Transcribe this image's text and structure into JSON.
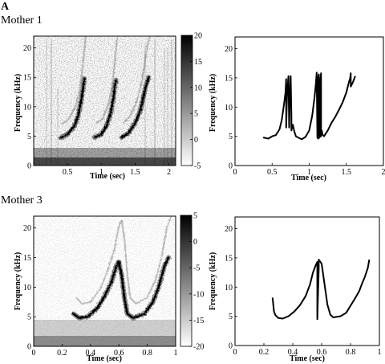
{
  "figure": {
    "panel_letter": "A",
    "rows": [
      {
        "label": "Mother 1"
      },
      {
        "label": "Mother 3"
      }
    ]
  },
  "chart_data": [
    {
      "id": "m1_spectrogram",
      "type": "heatmap",
      "title": "",
      "xlabel": "Time (sec)",
      "ylabel": "Frequency (kHz)",
      "xlim": [
        0,
        2.1
      ],
      "ylim": [
        0,
        22
      ],
      "xticks": [
        0.5,
        1,
        1.5,
        2
      ],
      "yticks": [
        0,
        5,
        10,
        15,
        20
      ],
      "colorbar": {
        "range": [
          -5,
          20
        ],
        "ticks": [
          20,
          15,
          10,
          5,
          0,
          -5
        ]
      },
      "traces": [
        {
          "points": [
            [
              0.4,
              4.7
            ],
            [
              0.5,
              5.3
            ],
            [
              0.6,
              6.7
            ],
            [
              0.66,
              8.5
            ],
            [
              0.7,
              11
            ],
            [
              0.73,
              13
            ],
            [
              0.75,
              14.8
            ]
          ]
        },
        {
          "points": [
            [
              0.9,
              4.8
            ],
            [
              1.0,
              5.3
            ],
            [
              1.08,
              6.8
            ],
            [
              1.14,
              9
            ],
            [
              1.18,
              11.5
            ],
            [
              1.2,
              13.5
            ],
            [
              1.22,
              14.5
            ]
          ]
        },
        {
          "points": [
            [
              1.3,
              4.8
            ],
            [
              1.4,
              5.5
            ],
            [
              1.5,
              7.2
            ],
            [
              1.58,
              9.5
            ],
            [
              1.62,
              11.5
            ],
            [
              1.66,
              13.5
            ],
            [
              1.7,
              15
            ]
          ]
        }
      ]
    },
    {
      "id": "m1_contour",
      "type": "line",
      "title": "",
      "xlabel": "Time (sec)",
      "ylabel": "Frequency (kHz)",
      "xlim": [
        0,
        2
      ],
      "ylim": [
        0,
        22
      ],
      "xticks": [
        0,
        0.5,
        1,
        1.5,
        2
      ],
      "yticks": [
        0,
        5,
        10,
        15,
        20
      ],
      "x": [
        0.38,
        0.45,
        0.5,
        0.55,
        0.6,
        0.63,
        0.66,
        0.68,
        0.69,
        0.69,
        0.7,
        0.72,
        0.73,
        0.74,
        0.75,
        0.76,
        0.76,
        0.78,
        0.8,
        0.82,
        0.85,
        0.9,
        0.95,
        1.0,
        1.04,
        1.07,
        1.09,
        1.1,
        1.11,
        1.12,
        1.12,
        1.13,
        1.13,
        1.15,
        1.15,
        1.16,
        1.16,
        1.17,
        1.18,
        1.2,
        1.25,
        1.3,
        1.35,
        1.4,
        1.45,
        1.5,
        1.52,
        1.54,
        1.55,
        1.56,
        1.56,
        1.58,
        1.6,
        1.62
      ],
      "y": [
        4.8,
        4.6,
        5.0,
        5.2,
        6.2,
        7.8,
        10.5,
        12.5,
        14.8,
        6.5,
        11.8,
        15.3,
        6.5,
        12,
        15.3,
        8.5,
        6.0,
        7.0,
        5.8,
        5.0,
        4.8,
        4.5,
        4.9,
        6.0,
        8.5,
        11.5,
        14.0,
        15.9,
        4.8,
        4.6,
        15.0,
        15.6,
        4.7,
        5.0,
        14.7,
        15.8,
        5.0,
        6.0,
        5.3,
        5.0,
        6.0,
        7.3,
        8.3,
        9.5,
        10.8,
        12.5,
        13.5,
        14.5,
        14.8,
        15.8,
        13.5,
        14.0,
        14.6,
        15.3
      ]
    },
    {
      "id": "m3_spectrogram",
      "type": "heatmap",
      "title": "",
      "xlabel": "Time (sec)",
      "ylabel": "Frequency (kHz)",
      "xlim": [
        0,
        1
      ],
      "ylim": [
        0,
        22
      ],
      "xticks": [
        0,
        0.2,
        0.4,
        0.6,
        0.8,
        1
      ],
      "yticks": [
        0,
        5,
        10,
        15,
        20
      ],
      "colorbar": {
        "range": [
          -20,
          5
        ],
        "ticks": [
          5,
          0,
          -5,
          -10,
          -15,
          -20
        ]
      },
      "traces": [
        {
          "points": [
            [
              0.28,
              5.5
            ],
            [
              0.32,
              4.8
            ],
            [
              0.38,
              5.0
            ],
            [
              0.45,
              6.5
            ],
            [
              0.5,
              8.5
            ],
            [
              0.55,
              11
            ],
            [
              0.58,
              13.5
            ],
            [
              0.6,
              14.2
            ]
          ]
        },
        {
          "points": [
            [
              0.6,
              14.2
            ],
            [
              0.62,
              12
            ],
            [
              0.64,
              8
            ],
            [
              0.66,
              5.5
            ],
            [
              0.7,
              4.8
            ],
            [
              0.78,
              5.5
            ],
            [
              0.84,
              7.5
            ],
            [
              0.88,
              10
            ],
            [
              0.92,
              13.5
            ],
            [
              0.95,
              15
            ]
          ]
        }
      ]
    },
    {
      "id": "m3_contour",
      "type": "line",
      "title": "",
      "xlabel": "Time (sec)",
      "ylabel": "Frequency (kHz)",
      "xlim": [
        0,
        1
      ],
      "ylim": [
        0,
        22
      ],
      "xticks": [
        0,
        0.2,
        0.4,
        0.6,
        0.8,
        1
      ],
      "yticks": [
        0,
        5,
        10,
        15,
        20
      ],
      "x": [
        0.26,
        0.27,
        0.28,
        0.3,
        0.33,
        0.37,
        0.41,
        0.45,
        0.49,
        0.52,
        0.54,
        0.56,
        0.57,
        0.57,
        0.58,
        0.58,
        0.6,
        0.62,
        0.64,
        0.66,
        0.68,
        0.7,
        0.73,
        0.77,
        0.8,
        0.83,
        0.86,
        0.88,
        0.9,
        0.92,
        0.93
      ],
      "y": [
        8.2,
        5.8,
        5.2,
        4.7,
        4.6,
        5.0,
        5.8,
        6.9,
        8.5,
        10.5,
        12.5,
        13.8,
        14.3,
        4.5,
        13.2,
        14.7,
        14.0,
        10.5,
        7.0,
        5.3,
        4.8,
        4.9,
        5.0,
        5.6,
        6.8,
        8.0,
        9.3,
        10.6,
        11.8,
        13.3,
        14.7
      ]
    }
  ]
}
